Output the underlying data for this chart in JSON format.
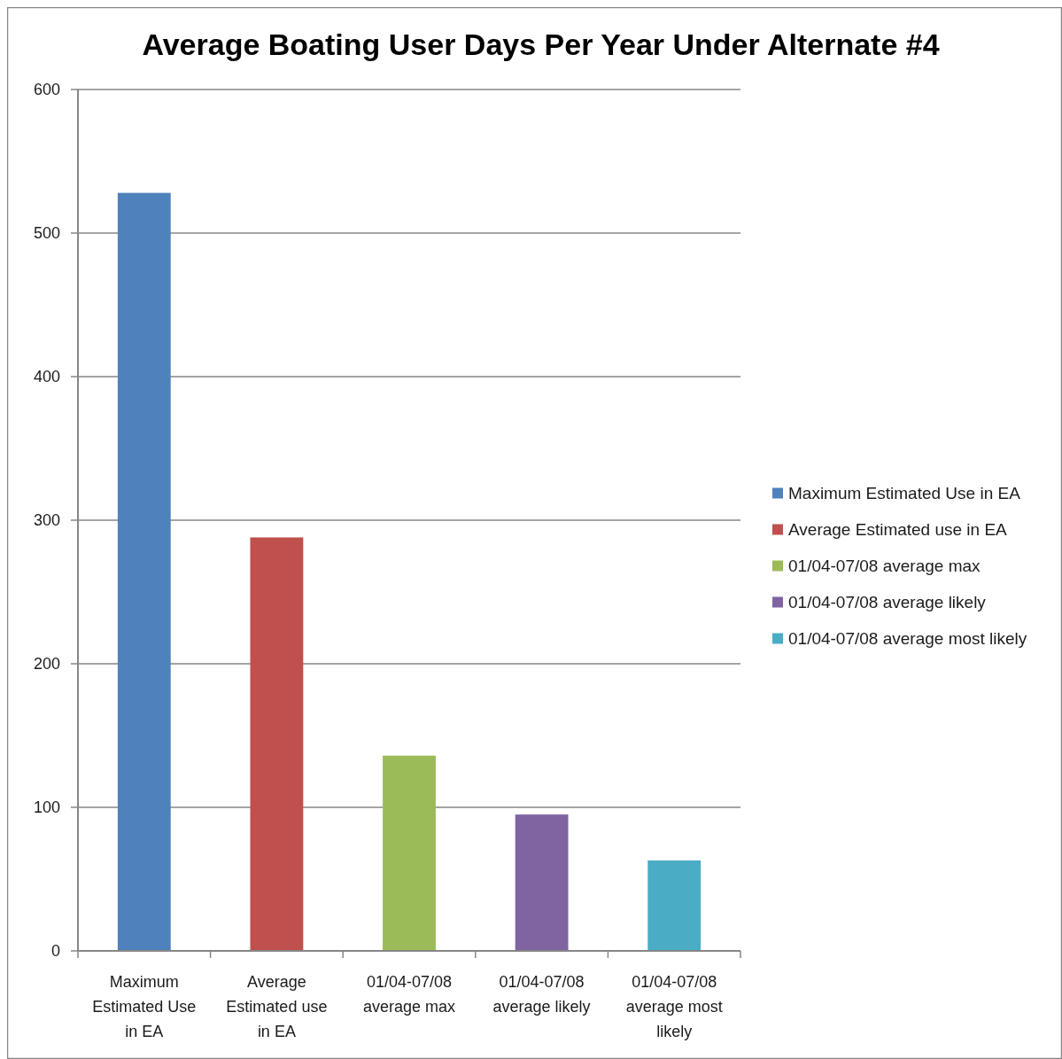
{
  "chart_data": {
    "type": "bar",
    "title": "Average Boating User Days Per Year Under Alternate #4",
    "categories": [
      "Maximum Estimated Use in EA",
      "Average Estimated use in EA",
      "01/04-07/08 average max",
      "01/04-07/08 average likely",
      "01/04-07/08 average most likely"
    ],
    "series": [
      {
        "name": "Maximum Estimated Use in EA",
        "color": "#4f81bd",
        "values": [
          528,
          null,
          null,
          null,
          null
        ]
      },
      {
        "name": "Average Estimated use in EA",
        "color": "#c0504d",
        "values": [
          null,
          288,
          null,
          null,
          null
        ]
      },
      {
        "name": "01/04-07/08 average max",
        "color": "#9bbb59",
        "values": [
          null,
          null,
          136,
          null,
          null
        ]
      },
      {
        "name": "01/04-07/08 average likely",
        "color": "#8064a2",
        "values": [
          null,
          null,
          null,
          95,
          null
        ]
      },
      {
        "name": "01/04-07/08 average most likely",
        "color": "#4bacc6",
        "values": [
          null,
          null,
          null,
          null,
          63
        ]
      }
    ],
    "ylim": [
      0,
      600
    ],
    "yticks": [
      0,
      100,
      200,
      300,
      400,
      500,
      600
    ],
    "grid": "y",
    "legend": "right"
  }
}
